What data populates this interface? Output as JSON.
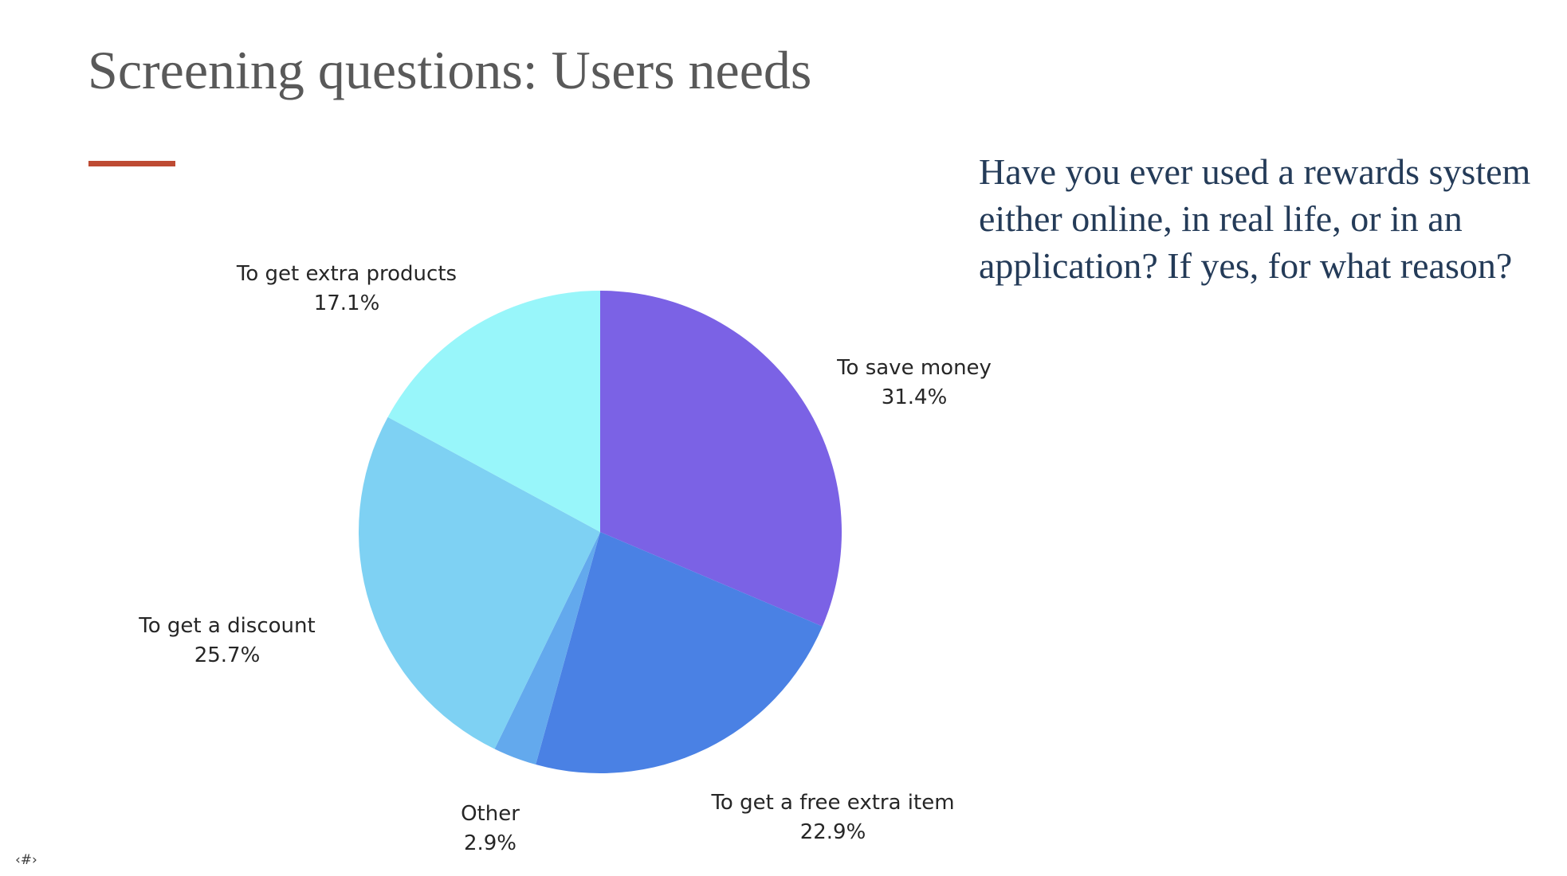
{
  "slide": {
    "title": "Screening questions: Users needs",
    "title_color": "#595959",
    "accent_color": "#BE4B33",
    "question": {
      "color": "#243B58",
      "text": "Have you ever used a rewards system either online, in real life, or in an application? If yes, for what reason?",
      "lines": [
        "Have you ever used a rewards system",
        "either online, in real life, or in an",
        "application? If yes, for what reason?"
      ]
    },
    "footer": {
      "slide_number_placeholder": "‹#›"
    }
  },
  "chart_data": {
    "type": "pie",
    "title": "",
    "start_angle_deg": 0,
    "direction": "clockwise",
    "label_format": "name + percent",
    "slices": [
      {
        "label": "To save money",
        "value_pct": 31.4,
        "percent_text": "31.4%",
        "color": "#7B62E5"
      },
      {
        "label": "To get a free extra item",
        "value_pct": 22.9,
        "percent_text": "22.9%",
        "color": "#4A81E4"
      },
      {
        "label": "Other",
        "value_pct": 2.9,
        "percent_text": "2.9%",
        "color": "#63A9ED"
      },
      {
        "label": "To get a discount",
        "value_pct": 25.7,
        "percent_text": "25.7%",
        "color": "#7ED1F3"
      },
      {
        "label": "To get extra products",
        "value_pct": 17.1,
        "percent_text": "17.1%",
        "color": "#98F6FA"
      }
    ],
    "label_text_color": "#262626"
  }
}
